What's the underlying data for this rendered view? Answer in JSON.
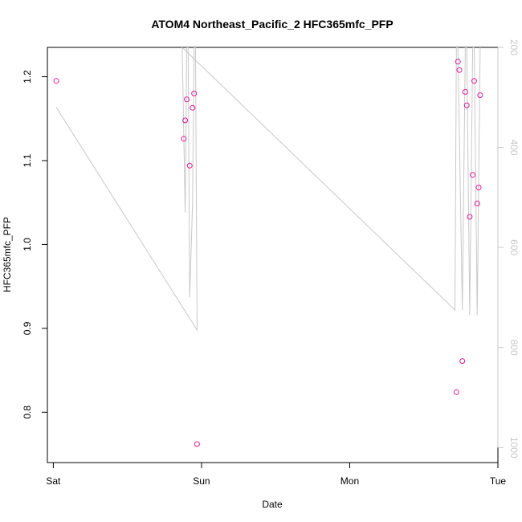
{
  "chart_data": {
    "type": "scatter",
    "title": "ATOM4 Northeast_Pacific_2 HFC365mfc_PFP",
    "xlabel": "Date",
    "ylabel": "HFC365mfc_PFP",
    "x_ticks": [
      "Sat",
      "Sun",
      "Mon",
      "Tue"
    ],
    "x_tick_positions": [
      0,
      1,
      2,
      3
    ],
    "xlim": [
      -0.04,
      3.0
    ],
    "ylim": [
      0.74,
      1.235
    ],
    "y_ticks": [
      0.8,
      0.9,
      1.0,
      1.1,
      1.2
    ],
    "y_tick_labels": [
      "0.8",
      "0.9",
      "1.0",
      "1.1",
      "1.2"
    ],
    "secondary_axis": {
      "reversed": true,
      "ylim": [
        200,
        1030
      ],
      "ticks": [
        200,
        400,
        600,
        800,
        1000
      ],
      "tick_labels": [
        "200",
        "400",
        "600",
        "800",
        "1000"
      ],
      "color": "#c8c8c8"
    },
    "series": [
      {
        "type": "scatter",
        "color": "#e8189a",
        "marker": "open-circle",
        "points": [
          [
            0.02,
            1.195
          ],
          [
            0.88,
            1.126
          ],
          [
            0.89,
            1.148
          ],
          [
            0.9,
            1.173
          ],
          [
            0.92,
            1.094
          ],
          [
            0.94,
            1.163
          ],
          [
            0.95,
            1.18
          ],
          [
            0.97,
            0.762
          ],
          [
            2.72,
            0.824
          ],
          [
            2.73,
            1.218
          ],
          [
            2.74,
            1.208
          ],
          [
            2.76,
            0.861
          ],
          [
            2.78,
            1.182
          ],
          [
            2.79,
            1.166
          ],
          [
            2.81,
            1.033
          ],
          [
            2.83,
            1.083
          ],
          [
            2.84,
            1.195
          ],
          [
            2.86,
            1.049
          ],
          [
            2.87,
            1.068
          ],
          [
            2.88,
            1.178
          ]
        ]
      },
      {
        "type": "line",
        "color": "#c8c8c8",
        "axis": "secondary",
        "points": [
          [
            0.02,
            320
          ],
          [
            0.97,
            765
          ],
          [
            0.96,
            200
          ],
          [
            0.95,
            200
          ],
          [
            0.94,
            510
          ],
          [
            0.92,
            700
          ],
          [
            0.91,
            200
          ],
          [
            0.9,
            200
          ],
          [
            0.89,
            530
          ],
          [
            0.87,
            200
          ],
          [
            2.71,
            725
          ],
          [
            2.72,
            200
          ],
          [
            2.73,
            200
          ],
          [
            2.76,
            725
          ],
          [
            2.78,
            200
          ],
          [
            2.79,
            200
          ],
          [
            2.81,
            735
          ],
          [
            2.83,
            200
          ],
          [
            2.84,
            200
          ],
          [
            2.86,
            735
          ],
          [
            2.88,
            200
          ]
        ]
      }
    ]
  }
}
